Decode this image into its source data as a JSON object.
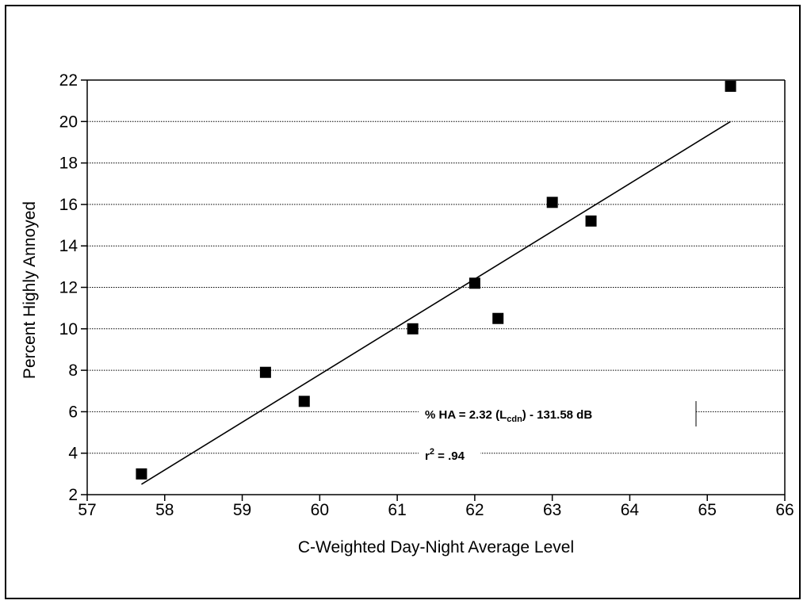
{
  "chart_data": {
    "type": "scatter",
    "xlabel": "C-Weighted Day-Night Average Level",
    "ylabel": "Percent Highly Annoyed",
    "xlim": [
      57,
      66
    ],
    "ylim": [
      2,
      22
    ],
    "x_ticks": [
      57,
      58,
      59,
      60,
      61,
      62,
      63,
      64,
      65,
      66
    ],
    "y_ticks": [
      2,
      4,
      6,
      8,
      10,
      12,
      14,
      16,
      18,
      20,
      22
    ],
    "grid": "horizontal-dotted",
    "series": [
      {
        "points": [
          {
            "x": 57.7,
            "y": 3.0
          },
          {
            "x": 59.3,
            "y": 7.9
          },
          {
            "x": 59.8,
            "y": 6.5
          },
          {
            "x": 61.2,
            "y": 10.0
          },
          {
            "x": 62.0,
            "y": 12.2
          },
          {
            "x": 62.3,
            "y": 10.5
          },
          {
            "x": 63.0,
            "y": 16.1
          },
          {
            "x": 63.5,
            "y": 15.2
          },
          {
            "x": 65.3,
            "y": 21.7
          }
        ]
      }
    ],
    "regression_line": {
      "x": [
        57.7,
        65.3
      ],
      "y": [
        2.5,
        20.0
      ]
    },
    "annotations": {
      "equation_prefix": "% HA = 2.32 (L",
      "equation_sub": "cdn",
      "equation_suffix": ") - 131.58 dB",
      "r2_prefix": "r",
      "r2_sup": "2",
      "r2_suffix": " = .94"
    }
  }
}
